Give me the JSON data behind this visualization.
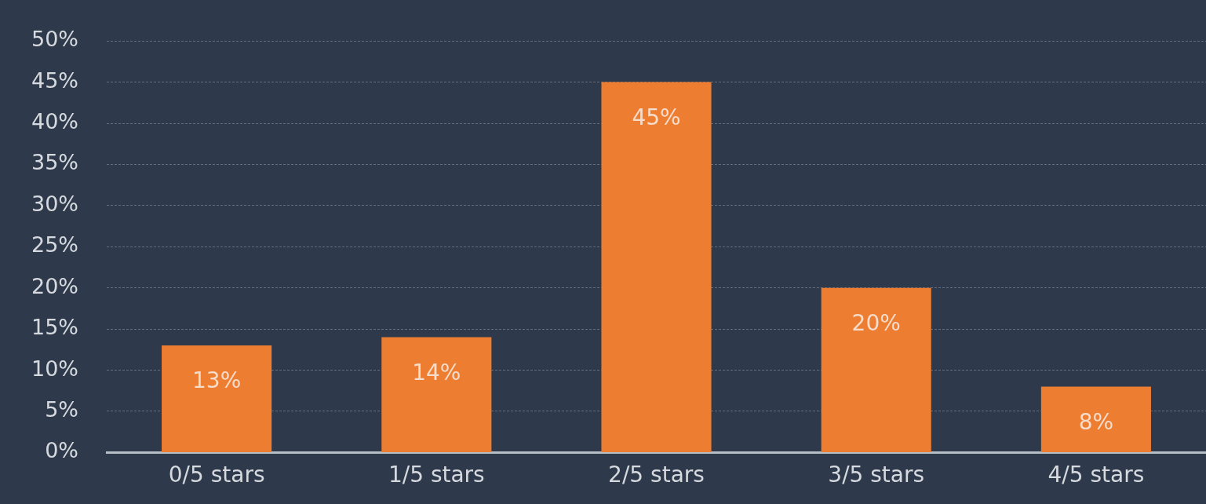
{
  "chart_data": {
    "type": "bar",
    "categories": [
      "0/5 stars",
      "1/5 stars",
      "2/5 stars",
      "3/5 stars",
      "4/5 stars"
    ],
    "values": [
      13,
      14,
      45,
      20,
      8
    ],
    "value_labels": [
      "13%",
      "14%",
      "45%",
      "20%",
      "8%"
    ],
    "color": "#ed7d31",
    "ylim": [
      0,
      50
    ],
    "yticks": [
      {
        "value": 0,
        "label": "0%"
      },
      {
        "value": 5,
        "label": "5%"
      },
      {
        "value": 10,
        "label": "10%"
      },
      {
        "value": 15,
        "label": "15%"
      },
      {
        "value": 20,
        "label": "20%"
      },
      {
        "value": 25,
        "label": "25%"
      },
      {
        "value": 30,
        "label": "30%"
      },
      {
        "value": 35,
        "label": "35%"
      },
      {
        "value": 40,
        "label": "40%"
      },
      {
        "value": 45,
        "label": "45%"
      },
      {
        "value": 50,
        "label": "50%"
      }
    ],
    "grid": "y",
    "legend": false
  }
}
